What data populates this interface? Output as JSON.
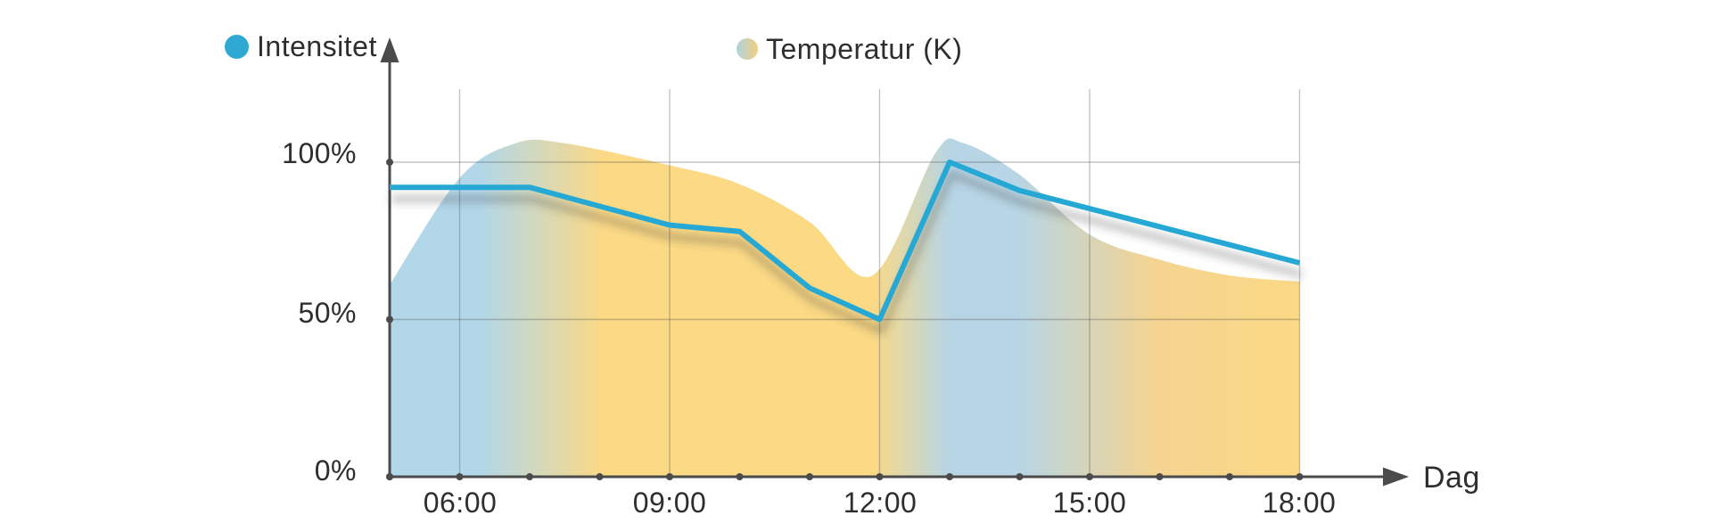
{
  "legend": {
    "intensitet": {
      "label": "Intensitet",
      "color": "#2FA9D4"
    },
    "temperatur": {
      "label": "Temperatur (K)",
      "color_left": "#AED2E3",
      "color_right": "#F3CF7C"
    }
  },
  "axes": {
    "x": {
      "label": "Dag",
      "tick_labels": [
        "06:00",
        "09:00",
        "12:00",
        "15:00",
        "18:00"
      ]
    },
    "y": {
      "tick_labels": [
        "100%",
        "50%",
        "0%"
      ]
    }
  },
  "chart_data": {
    "type": "line",
    "title": "",
    "x_axis": {
      "label": "Dag",
      "unit": "time of day",
      "range_hours": [
        5,
        18
      ],
      "minor_ticks": "every hour",
      "labeled_ticks": [
        "06:00",
        "09:00",
        "12:00",
        "15:00",
        "18:00"
      ]
    },
    "y_axis": {
      "unit": "%",
      "range": [
        0,
        120
      ],
      "gridlines_at": [
        50,
        100
      ],
      "tick_labels": [
        "0%",
        "50%",
        "100%"
      ]
    },
    "grid": true,
    "legend_position": "top",
    "series": [
      {
        "name": "Intensitet",
        "type": "line",
        "color": "#25A8D4",
        "stroke_width": 6,
        "shadow": {
          "dx": 2,
          "dy": 13,
          "blur": 5,
          "color": "#3a3a3a",
          "opacity": 0.42
        },
        "points_hour_pct": [
          [
            5,
            92
          ],
          [
            7,
            92
          ],
          [
            9,
            80
          ],
          [
            10,
            78
          ],
          [
            11,
            60
          ],
          [
            12,
            50
          ],
          [
            13,
            100
          ],
          [
            14,
            91
          ],
          [
            18,
            68
          ]
        ]
      },
      {
        "name": "Temperatur (K)",
        "type": "area",
        "smooth": true,
        "gradient_stops": [
          [
            0.0,
            "#B2D7E9"
          ],
          [
            0.1,
            "#B2D7E9"
          ],
          [
            0.235,
            "#FBD985"
          ],
          [
            0.53,
            "#FBD985"
          ],
          [
            0.615,
            "#B7D5E5"
          ],
          [
            0.69,
            "#B7D5E5"
          ],
          [
            0.84,
            "#F4D491"
          ],
          [
            1.0,
            "#FBD985"
          ]
        ],
        "points_hour_pct": [
          [
            5,
            61
          ],
          [
            6,
            95
          ],
          [
            6.8,
            106
          ],
          [
            7.5,
            106
          ],
          [
            9,
            99
          ],
          [
            10,
            93
          ],
          [
            11,
            81
          ],
          [
            11.9,
            64
          ],
          [
            12.8,
            103
          ],
          [
            13.2,
            106
          ],
          [
            14,
            96
          ],
          [
            15,
            77
          ],
          [
            16,
            69
          ],
          [
            17,
            64
          ],
          [
            18,
            62
          ]
        ]
      }
    ],
    "style": {
      "axis_color": "#4b4b4b",
      "gridline_color": "rgba(70,70,70,0.32)",
      "tick_dot_radius": 4,
      "background": "#ffffff"
    }
  }
}
